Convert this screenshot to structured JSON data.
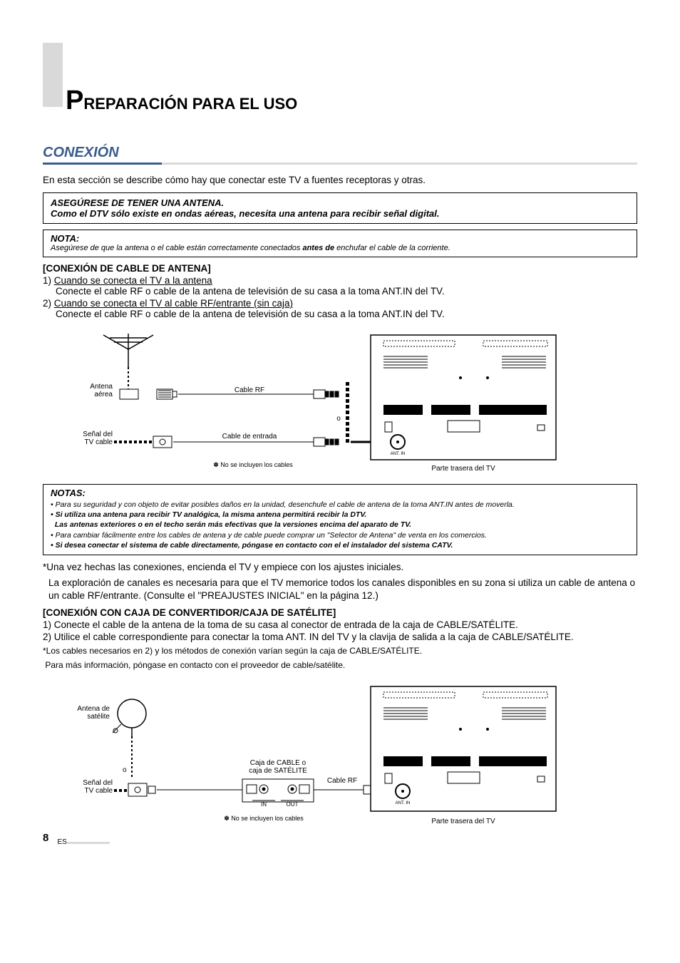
{
  "chapter": {
    "firstLetter": "P",
    "rest": "REPARACIÓN PARA EL USO"
  },
  "section": "CONEXIÓN",
  "intro": "En esta sección se describe cómo hay que conectar este TV a fuentes receptoras y otras.",
  "antennaBox": {
    "line1": "ASEGÚRESE DE TENER UNA ANTENA.",
    "line2": "Como el DTV sólo existe en ondas aéreas, necesita una antena para recibir señal digital."
  },
  "nota1": {
    "title": "NOTA:",
    "body_pre": "Asegúrese de que la antena o el cable están correctamente conectados ",
    "body_bold": "antes de",
    "body_post": " enchufar el cable de la corriente."
  },
  "sub1": "[CONEXIÓN DE CABLE DE ANTENA]",
  "step1a_num": "1) ",
  "step1a_u": "Cuando se conecta el TV a la antena",
  "step1a_desc": "Conecte el cable RF o cable de la antena de televisión de su casa a la toma ANT.IN del TV.",
  "step1b_num": "2) ",
  "step1b_u": "Cuando se conecta el TV al cable RF/entrante (sin caja)",
  "step1b_desc": "Conecte el cable RF o cable de la antena de televisión de su casa a la toma ANT.IN del TV.",
  "diagram1": {
    "antenaAerea": "Antena\naérea",
    "senalCable": "Señal del\nTV cable",
    "cableRF": "Cable RF",
    "cableEntrada": "Cable de entrada",
    "noCables": "✽ No se incluyen los cables",
    "parteTrasera": "Parte trasera del TV",
    "o": "o",
    "antIn": "ANT. IN"
  },
  "notas2": {
    "title": "NOTAS:",
    "items": [
      {
        "text": "• Para su seguridad y con objeto de evitar posibles daños en la unidad, desenchufe el cable de antena de la toma ANT.IN antes de moverla.",
        "bold": false
      },
      {
        "text": "• Si utiliza una antena para recibir TV analógica, la misma antena permitirá recibir la DTV.",
        "bold": true
      },
      {
        "text": "  Las antenas exteriores o en el techo serán más efectivas que la versiones encima del aparato de TV.",
        "bold": true
      },
      {
        "text": "• Para cambiar fácilmente entre los cables de antena y de cable puede comprar un \"Selector de Antena\" de venta en los comercios.",
        "bold": false
      },
      {
        "text": "• Si desea conectar el sistema de cable directamente, póngase en contacto con el el instalador del sistema CATV.",
        "bold": true
      }
    ]
  },
  "para2a": "*Una vez hechas las conexiones, encienda el TV y empiece con los ajustes iniciales.",
  "para2b": "La exploración de canales es necesaria para que el TV memorice todos los canales disponibles en su zona si utiliza un cable de antena o un cable RF/entrante. (Consulte el \"PREAJUSTES INICIAL\" en la página 12.)",
  "sub2": "[CONEXIÓN CON CAJA DE CONVERTIDOR/CAJA DE SATÉLITE]",
  "step2a": "1) Conecte el cable de la antena de la toma de su casa al conector de entrada de la caja de CABLE/SATÉLITE.",
  "step2b": "2) Utilice el cable correspondiente para conectar la toma ANT. IN del TV y la clavija de salida a la caja de CABLE/SATÉLITE.",
  "foot1": "*Los cables necesarios en 2) y los métodos de conexión varían según la caja de CABLE/SATÉLITE.",
  "foot2": " Para más información, póngase en contacto con el proveedor de cable/satélite.",
  "diagram2": {
    "antenaSat": "Antena de\nsatélite",
    "senalCable": "Señal del\nTV cable",
    "cajaCable": "Caja de CABLE o\ncaja de SATÉLITE",
    "cableRF": "Cable RF",
    "noCables": "✽ No se incluyen los cables",
    "parteTrasera": "Parte trasera del TV",
    "o": "o",
    "in": "IN",
    "out": "OUT",
    "antIn": "ANT. IN"
  },
  "pageNum": "8",
  "locale": "ES"
}
